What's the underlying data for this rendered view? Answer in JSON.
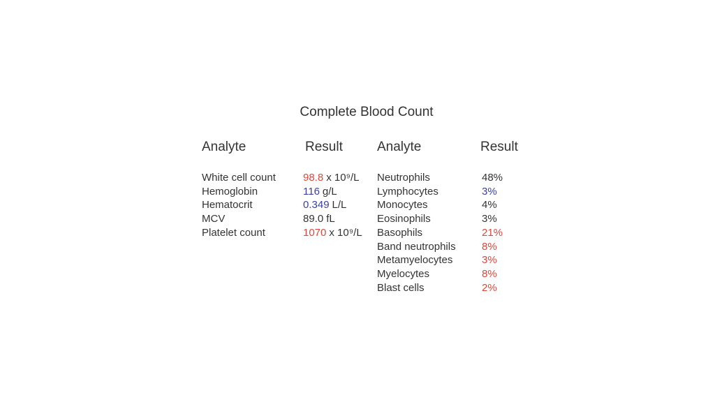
{
  "title": "Complete Blood Count",
  "left_table": {
    "headers": [
      "Analyte",
      "Result"
    ],
    "rows": [
      {
        "analyte": "White cell count",
        "result": "98.8",
        "unit": "x 10⁹/L",
        "color": "#e0463c"
      },
      {
        "analyte": "Hemoglobin",
        "result": "116",
        "unit": "g/L",
        "color": "#3b3fa6"
      },
      {
        "analyte": "Hematocrit",
        "result": "0.349",
        "unit": "L/L",
        "color": "#3b3fa6"
      },
      {
        "analyte": "MCV",
        "result": "89.0",
        "unit": "fL",
        "color": "#333333"
      },
      {
        "analyte": "Platelet count",
        "result": "1070",
        "unit": "x 10⁹/L",
        "color": "#e0463c"
      }
    ]
  },
  "right_table": {
    "headers": [
      "Analyte",
      "Result"
    ],
    "rows": [
      {
        "analyte": "Neutrophils",
        "result": "48%",
        "color": "#333333"
      },
      {
        "analyte": "Lymphocytes",
        "result": "3%",
        "color": "#3b3fa6"
      },
      {
        "analyte": "Monocytes",
        "result": "4%",
        "color": "#333333"
      },
      {
        "analyte": "Eosinophils",
        "result": "3%",
        "color": "#333333"
      },
      {
        "analyte": "Basophils",
        "result": "21%",
        "color": "#e0463c"
      },
      {
        "analyte": "Band neutrophils",
        "result": "8%",
        "color": "#e0463c"
      },
      {
        "analyte": "Metamyelocytes",
        "result": "3%",
        "color": "#e0463c"
      },
      {
        "analyte": "Myelocytes",
        "result": "8%",
        "color": "#e0463c"
      },
      {
        "analyte": "Blast cells",
        "result": "2%",
        "color": "#e0463c"
      }
    ]
  }
}
